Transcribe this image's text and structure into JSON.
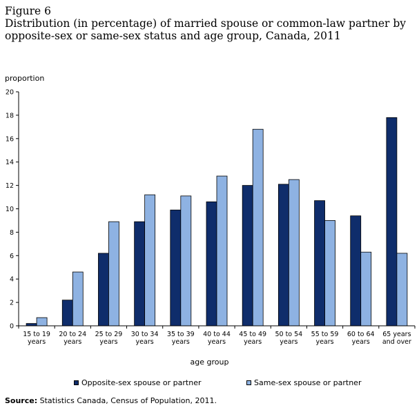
{
  "header": {
    "figure_label": "Figure 6",
    "title": "Distribution (in percentage) of married spouse or common-law partner by opposite-sex or same-sex status and age group, Canada, 2011"
  },
  "footer": {
    "source_label": "Source:",
    "source_text": " Statistics Canada, Census of Population, 2011."
  },
  "colors": {
    "opposite_sex": "#0f2d6b",
    "same_sex": "#8eb2e2",
    "bar_outline": "#000000",
    "axis": "#000000"
  },
  "chart_data": {
    "type": "bar",
    "title": "Distribution (in percentage) of married spouse or common-law partner by opposite-sex or same-sex status and age group, Canada, 2011",
    "xlabel": "age group",
    "ylabel": "proportion",
    "ylim": [
      0,
      20
    ],
    "yticks": [
      0,
      2,
      4,
      6,
      8,
      10,
      12,
      14,
      16,
      18,
      20
    ],
    "grid": false,
    "legend_position": "bottom",
    "categories": [
      [
        "15 to 19",
        "years"
      ],
      [
        "20 to 24",
        "years"
      ],
      [
        "25 to 29",
        "years"
      ],
      [
        "30 to 34",
        "years"
      ],
      [
        "35 to 39",
        "years"
      ],
      [
        "40 to 44",
        "years"
      ],
      [
        "45 to 49",
        "years"
      ],
      [
        "50 to 54",
        "years"
      ],
      [
        "55 to 59",
        "years"
      ],
      [
        "60 to 64",
        "years"
      ],
      [
        "65 years",
        "and over"
      ]
    ],
    "series": [
      {
        "name": "Opposite-sex spouse or partner",
        "color": "#0f2d6b",
        "values": [
          0.2,
          2.2,
          6.2,
          8.9,
          9.9,
          10.6,
          12.0,
          12.1,
          10.7,
          9.4,
          17.8
        ]
      },
      {
        "name": "Same-sex spouse or partner",
        "color": "#8eb2e2",
        "values": [
          0.7,
          4.6,
          8.9,
          11.2,
          11.1,
          12.8,
          16.8,
          12.5,
          9.0,
          6.3,
          6.2
        ]
      }
    ]
  }
}
